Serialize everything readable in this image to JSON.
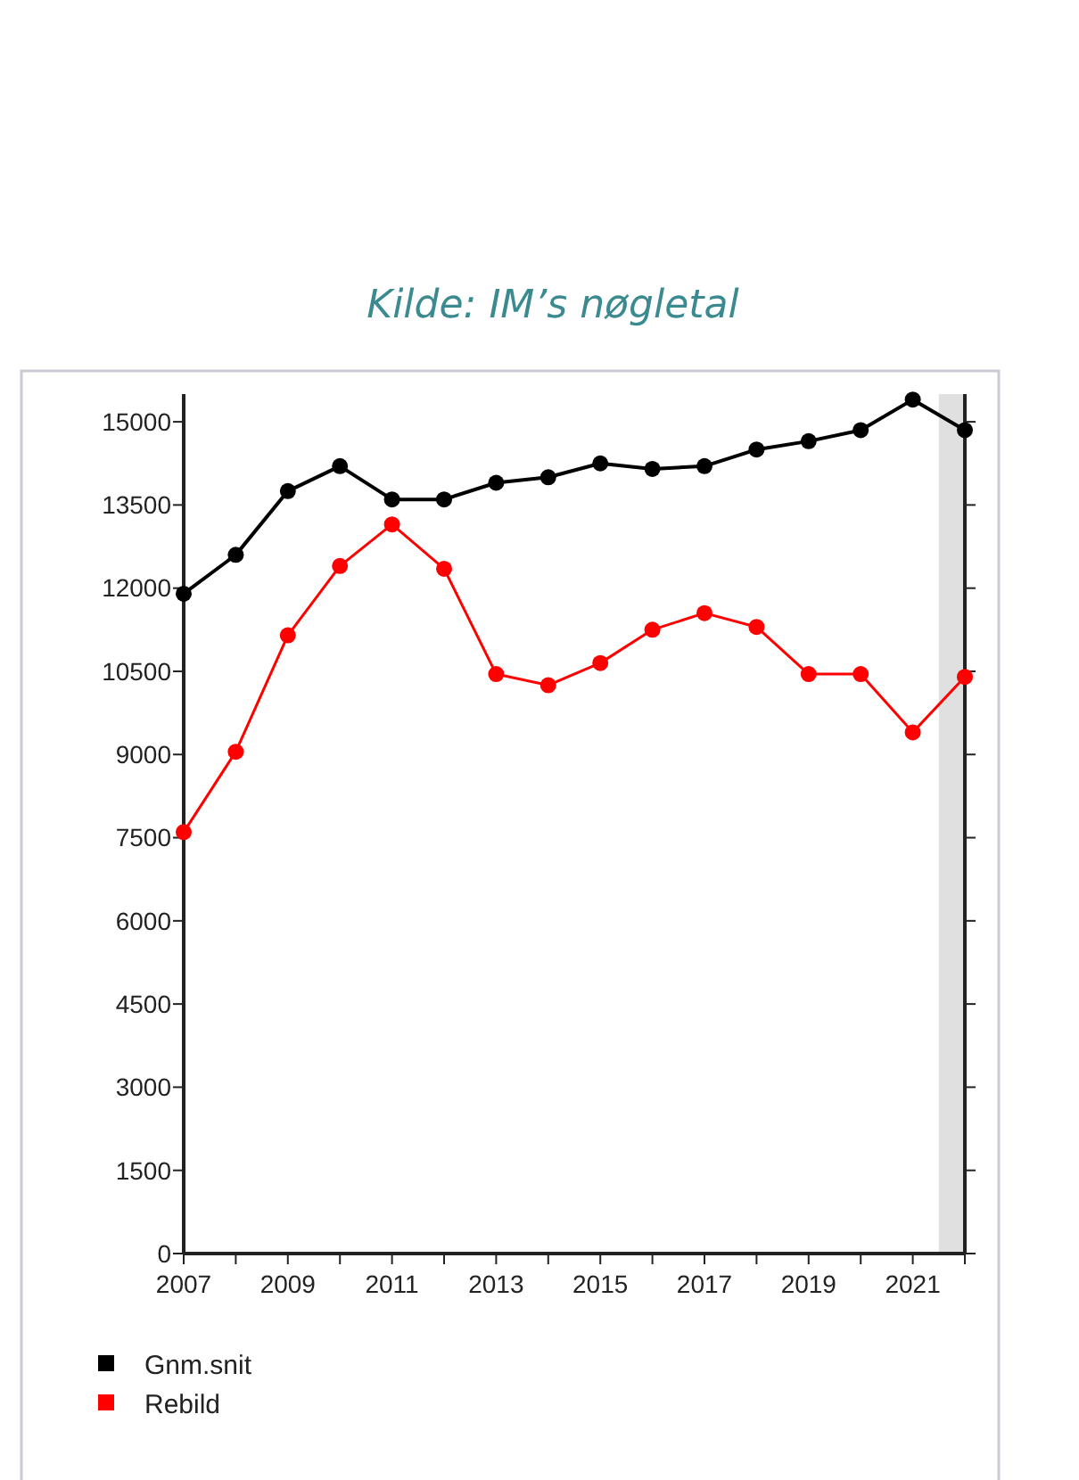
{
  "chart_data": {
    "type": "line",
    "annotations": [
      "Kilde: IM’s nøgletal"
    ],
    "x": [
      2007,
      2008,
      2009,
      2010,
      2011,
      2012,
      2013,
      2014,
      2015,
      2016,
      2017,
      2018,
      2019,
      2020,
      2021,
      2022
    ],
    "series": [
      {
        "name": "Gnm.snit",
        "color": "#000000",
        "values": [
          11900,
          12600,
          13750,
          14200,
          13600,
          13600,
          13900,
          14000,
          14250,
          14150,
          14200,
          14500,
          14650,
          14850,
          15400,
          14850
        ]
      },
      {
        "name": "Rebild",
        "color": "#ff0000",
        "values": [
          7600,
          9050,
          11150,
          12400,
          13150,
          12350,
          10450,
          10250,
          10650,
          11250,
          11550,
          11300,
          10450,
          10450,
          9400,
          10400
        ]
      }
    ],
    "xlim": [
      2007,
      2022
    ],
    "xticks": [
      2007,
      {
        "value": 2008,
        "label": null
      },
      2009,
      {
        "value": 2010,
        "label": null
      },
      2011,
      {
        "value": 2012,
        "label": null
      },
      2013,
      {
        "value": 2014,
        "label": null
      },
      2015,
      {
        "value": 2016,
        "label": null
      },
      2017,
      {
        "value": 2018,
        "label": null
      },
      2019,
      {
        "value": 2020,
        "label": null
      },
      2021,
      {
        "value": 2022,
        "label": null
      }
    ],
    "ylim": [
      0,
      15500
    ],
    "yticks": [
      0,
      1500,
      3000,
      4500,
      6000,
      7500,
      9000,
      10500,
      12000,
      13500,
      15000
    ],
    "bands": [
      {
        "axis": "x",
        "from": 2021.5,
        "to": 2022,
        "color": "#e0e0e0"
      }
    ],
    "marker": "circle",
    "grid": false,
    "legend": "bottom left"
  }
}
